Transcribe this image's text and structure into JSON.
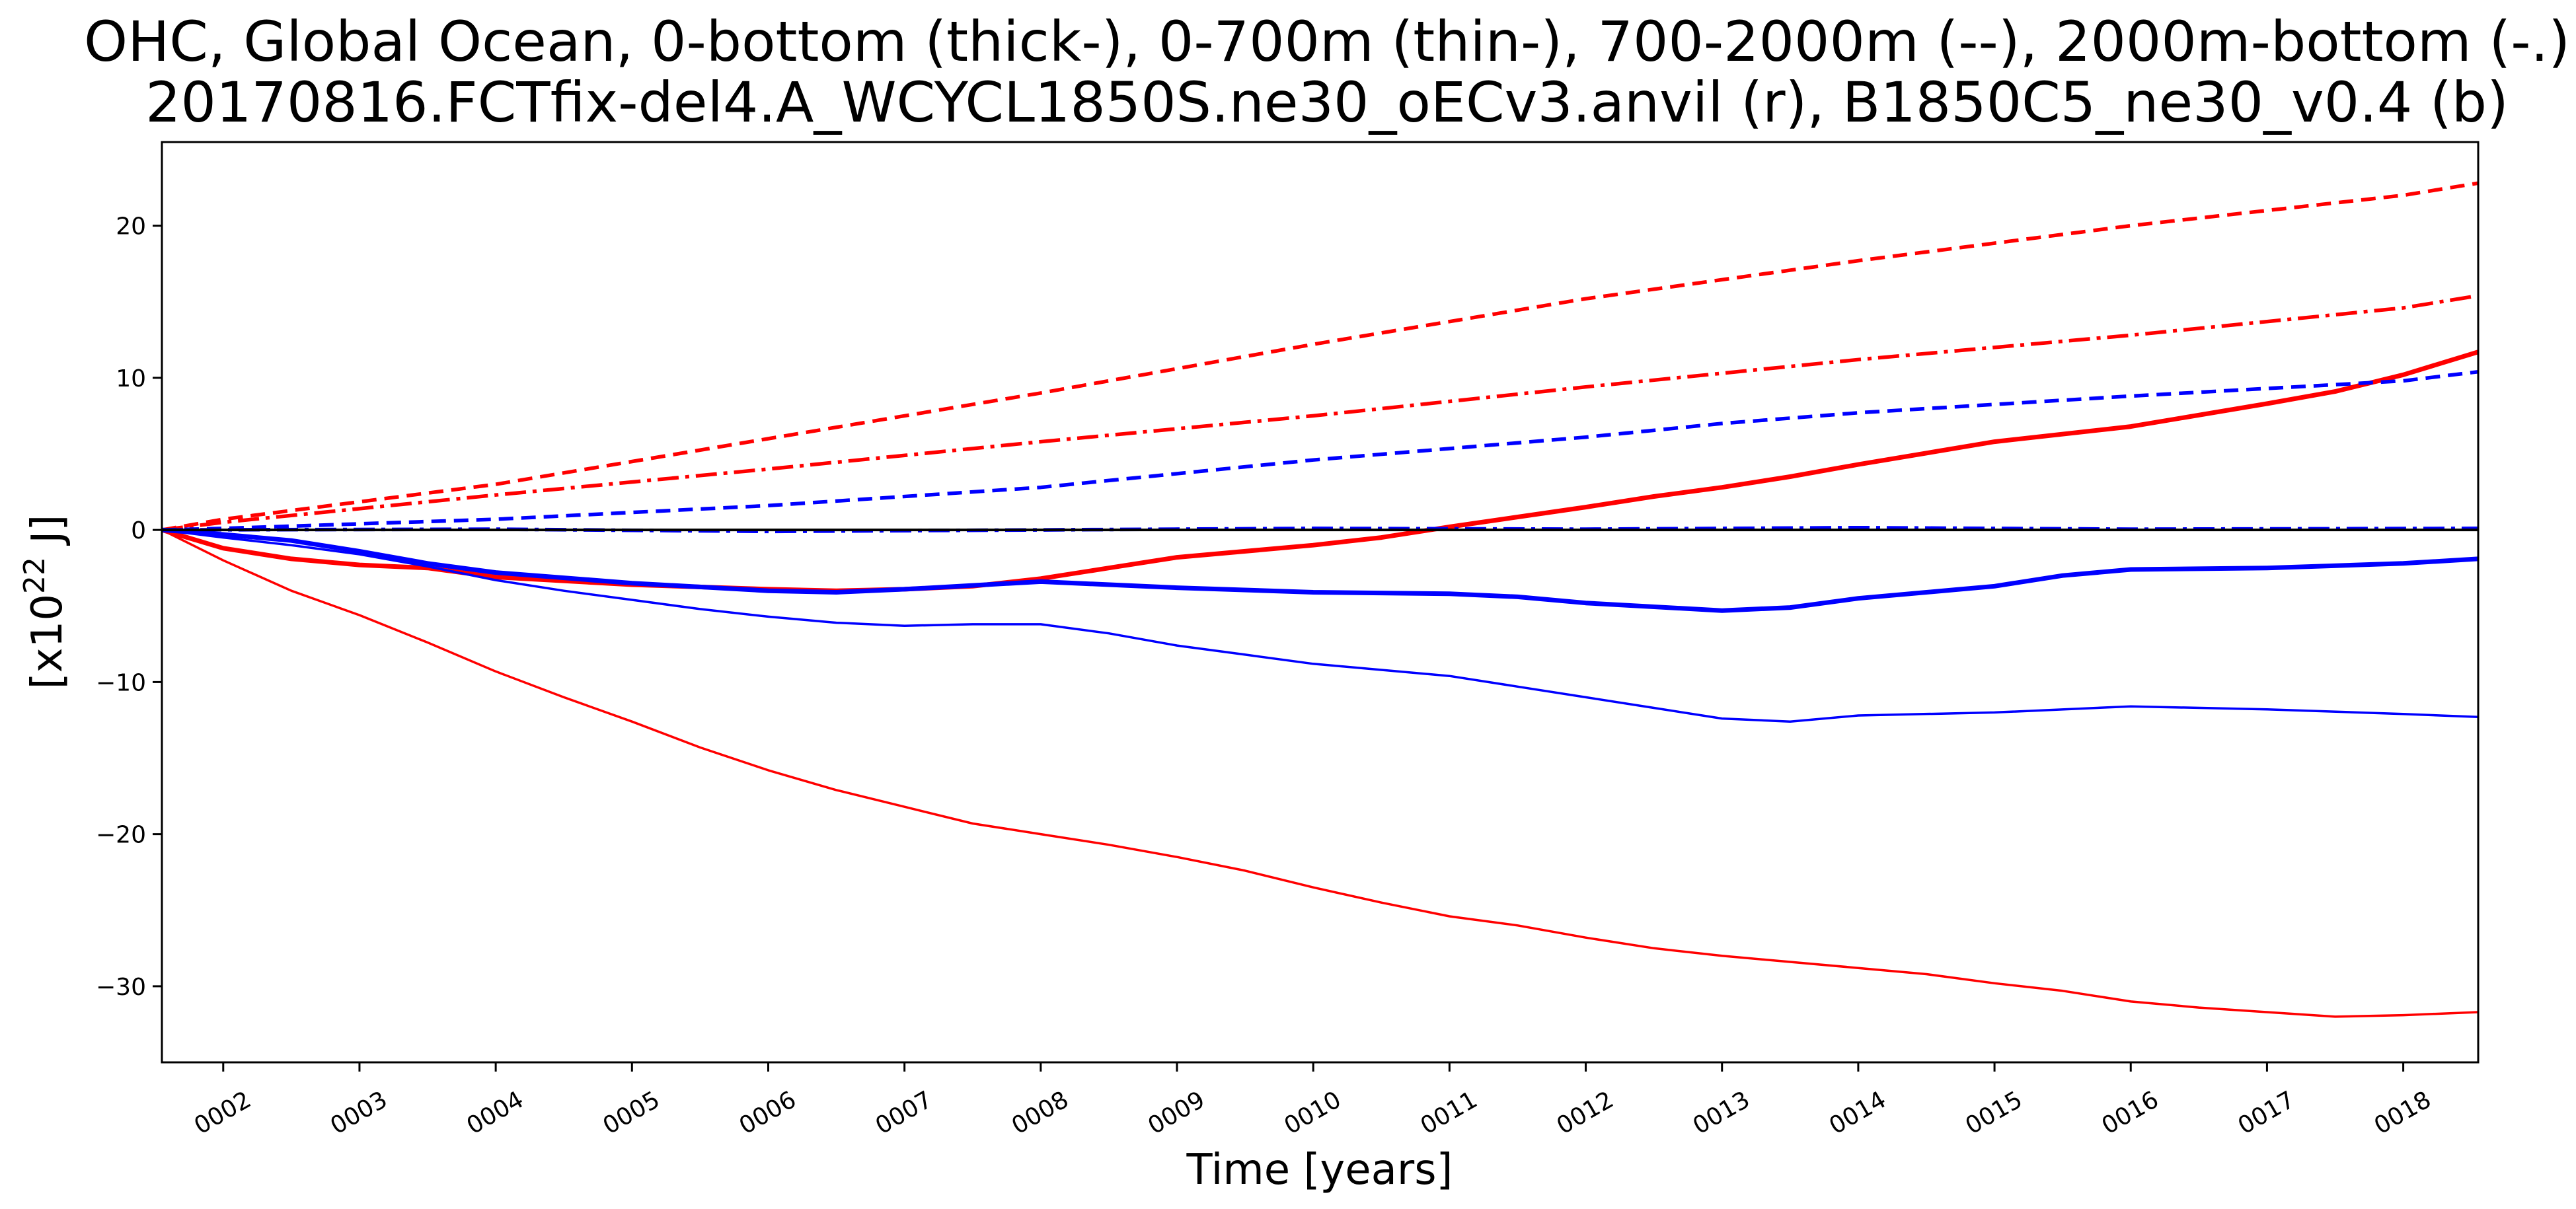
{
  "chart_data": {
    "type": "line",
    "title": "OHC, Global Ocean, 0-bottom (thick-), 0-700m (thin-), 700-2000m (--), 2000m-bottom (-.)",
    "subtitle": "20170816.FCTfix-del4.A_WCYCL1850S.ne30_oECv3.anvil (r), B1850C5_ne30_v0.4 (b)",
    "xlabel": "Time [years]",
    "ylabel_base": "[x10",
    "ylabel_exp": "22",
    "ylabel_unit": " J]",
    "xlim": [
      1.55,
      18.55
    ],
    "ylim": [
      -35,
      25.5
    ],
    "x_ticks": [
      {
        "value": 2,
        "label": "0002"
      },
      {
        "value": 3,
        "label": "0003"
      },
      {
        "value": 4,
        "label": "0004"
      },
      {
        "value": 5,
        "label": "0005"
      },
      {
        "value": 6,
        "label": "0006"
      },
      {
        "value": 7,
        "label": "0007"
      },
      {
        "value": 8,
        "label": "0008"
      },
      {
        "value": 9,
        "label": "0009"
      },
      {
        "value": 10,
        "label": "0010"
      },
      {
        "value": 11,
        "label": "0011"
      },
      {
        "value": 12,
        "label": "0012"
      },
      {
        "value": 13,
        "label": "0013"
      },
      {
        "value": 14,
        "label": "0014"
      },
      {
        "value": 15,
        "label": "0015"
      },
      {
        "value": 16,
        "label": "0016"
      },
      {
        "value": 17,
        "label": "0017"
      },
      {
        "value": 18,
        "label": "0018"
      }
    ],
    "y_ticks": [
      {
        "value": -30,
        "label": "−30"
      },
      {
        "value": -20,
        "label": "−20"
      },
      {
        "value": -10,
        "label": "−10"
      },
      {
        "value": 0,
        "label": "0"
      },
      {
        "value": 10,
        "label": "10"
      },
      {
        "value": 20,
        "label": "20"
      }
    ],
    "grid": false,
    "series": [
      {
        "color": "#ff0000",
        "width": 7,
        "dash": "",
        "x": [
          1.55,
          2,
          2.5,
          3,
          3.5,
          4,
          5,
          6,
          6.5,
          7,
          7.5,
          8,
          8.5,
          9,
          10,
          10.5,
          11,
          12,
          12.5,
          13,
          13.5,
          14,
          15,
          16,
          17,
          17.5,
          18,
          18.55
        ],
        "y": [
          0,
          -1.2,
          -1.9,
          -2.3,
          -2.5,
          -3.1,
          -3.6,
          -3.9,
          -4.0,
          -3.9,
          -3.7,
          -3.2,
          -2.5,
          -1.8,
          -1.0,
          -0.5,
          0.2,
          1.5,
          2.2,
          2.8,
          3.5,
          4.3,
          5.8,
          6.8,
          8.3,
          9.1,
          10.2,
          11.7
        ]
      },
      {
        "color": "#ff0000",
        "width": 3.5,
        "dash": "",
        "x": [
          1.55,
          2,
          2.5,
          3,
          3.5,
          4,
          4.5,
          5,
          5.5,
          6,
          6.5,
          7,
          7.5,
          8,
          8.5,
          9,
          9.5,
          10,
          10.5,
          11,
          11.5,
          12,
          12.5,
          13,
          13.5,
          14,
          14.5,
          15,
          15.5,
          16,
          16.5,
          17,
          17.5,
          18,
          18.55
        ],
        "y": [
          0,
          -2.0,
          -4.0,
          -5.6,
          -7.4,
          -9.3,
          -11.0,
          -12.6,
          -14.3,
          -15.8,
          -17.1,
          -18.2,
          -19.3,
          -20.0,
          -20.7,
          -21.5,
          -22.4,
          -23.5,
          -24.5,
          -25.4,
          -26.0,
          -26.8,
          -27.5,
          -28.0,
          -28.4,
          -28.8,
          -29.2,
          -29.8,
          -30.3,
          -31.0,
          -31.4,
          -31.7,
          -32.0,
          -31.9,
          -31.7
        ]
      },
      {
        "color": "#ff0000",
        "width": 5.5,
        "dash": "22,12",
        "x": [
          1.55,
          2,
          4,
          6,
          8,
          10,
          12,
          14,
          16,
          18,
          18.55
        ],
        "y": [
          0,
          0.7,
          3.0,
          6.0,
          9.0,
          12.2,
          15.2,
          17.7,
          20.0,
          22.0,
          22.8
        ]
      },
      {
        "color": "#ff0000",
        "width": 5.5,
        "dash": "32,10,6,10",
        "x": [
          1.55,
          2,
          4,
          6,
          8,
          10,
          12,
          14,
          16,
          18,
          18.55
        ],
        "y": [
          0,
          0.5,
          2.3,
          4.0,
          5.8,
          7.5,
          9.4,
          11.2,
          12.8,
          14.6,
          15.4
        ]
      },
      {
        "color": "#0000ff",
        "width": 7,
        "dash": "",
        "x": [
          1.55,
          2,
          2.5,
          3,
          3.5,
          4,
          5,
          6,
          6.5,
          7,
          8,
          9,
          10,
          11,
          11.5,
          12,
          13,
          13.5,
          14,
          15,
          15.5,
          16,
          17,
          18,
          18.55
        ],
        "y": [
          0,
          -0.3,
          -0.7,
          -1.4,
          -2.2,
          -2.8,
          -3.5,
          -4.0,
          -4.1,
          -3.9,
          -3.4,
          -3.8,
          -4.1,
          -4.2,
          -4.4,
          -4.8,
          -5.3,
          -5.1,
          -4.5,
          -3.7,
          -3.0,
          -2.6,
          -2.5,
          -2.2,
          -1.9
        ]
      },
      {
        "color": "#0000ff",
        "width": 3.5,
        "dash": "",
        "x": [
          1.55,
          2,
          2.5,
          3,
          3.5,
          4,
          4.5,
          5,
          5.5,
          6,
          6.5,
          7,
          7.5,
          8,
          8.5,
          9,
          9.5,
          10,
          10.5,
          11,
          11.5,
          12,
          12.5,
          13,
          13.5,
          14,
          15,
          16,
          17,
          18,
          18.55
        ],
        "y": [
          0,
          -0.5,
          -1.0,
          -1.6,
          -2.4,
          -3.3,
          -4.0,
          -4.6,
          -5.2,
          -5.7,
          -6.1,
          -6.3,
          -6.2,
          -6.2,
          -6.8,
          -7.6,
          -8.2,
          -8.8,
          -9.2,
          -9.6,
          -10.3,
          -11.0,
          -11.7,
          -12.4,
          -12.6,
          -12.2,
          -12.0,
          -11.6,
          -11.8,
          -12.1,
          -12.3
        ]
      },
      {
        "color": "#0000ff",
        "width": 5.5,
        "dash": "22,12",
        "x": [
          1.55,
          2,
          4,
          6,
          8,
          10,
          12,
          13,
          14,
          16,
          18,
          18.55
        ],
        "y": [
          0,
          0.1,
          0.7,
          1.6,
          2.8,
          4.6,
          6.1,
          7.0,
          7.7,
          8.8,
          9.8,
          10.4
        ]
      },
      {
        "color": "#0000ff",
        "width": 5.5,
        "dash": "32,10,6,10",
        "x": [
          1.55,
          4,
          6,
          8,
          10,
          12,
          14,
          16,
          18.55
        ],
        "y": [
          0,
          0.05,
          -0.1,
          0.0,
          0.1,
          0.05,
          0.15,
          0.05,
          0.1
        ]
      },
      {
        "color": "#000000",
        "width": 4,
        "dash": "",
        "x": [
          1.55,
          18.55
        ],
        "y": [
          0,
          0
        ]
      }
    ]
  }
}
